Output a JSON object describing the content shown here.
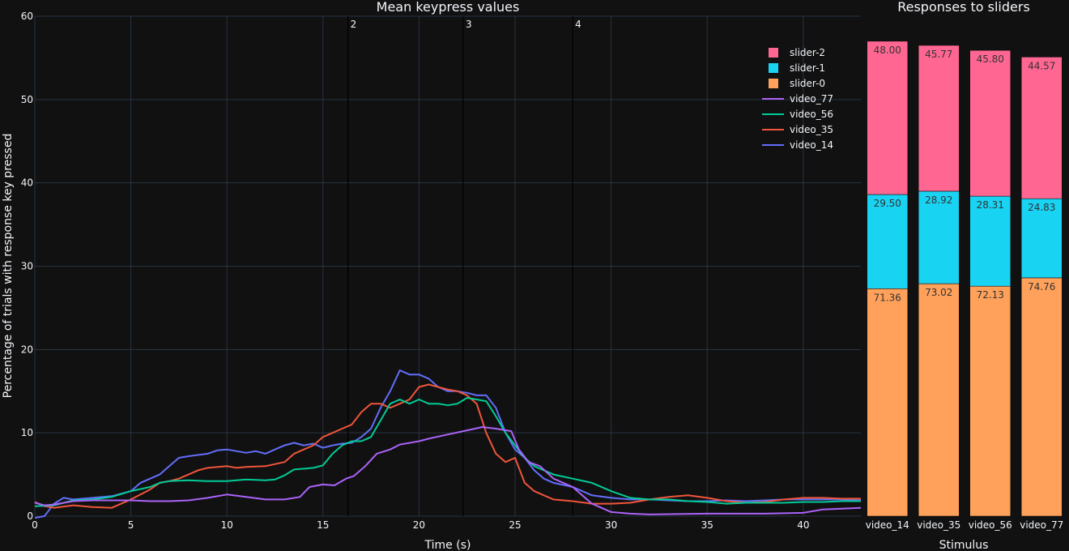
{
  "chart_data": [
    {
      "type": "line",
      "title": "Mean keypress values",
      "xlabel": "Time (s)",
      "ylabel": "Percentage of trials with response key pressed",
      "xlim": [
        0,
        43
      ],
      "ylim": [
        0,
        60
      ],
      "x_ticks": [
        0,
        5,
        10,
        15,
        20,
        25,
        30,
        35,
        40
      ],
      "y_ticks": [
        0,
        10,
        20,
        30,
        40,
        50,
        60
      ],
      "grid": true,
      "legend": "top-right",
      "event_markers": [
        {
          "label": "2",
          "x": 16.3
        },
        {
          "label": "3",
          "x": 22.3
        },
        {
          "label": "4",
          "x": 28.0
        }
      ],
      "series": [
        {
          "name": "video_77",
          "color": "#ab63fa",
          "points": [
            [
              0,
              1.6
            ],
            [
              0.5,
              1.3
            ],
            [
              1,
              1.4
            ],
            [
              2,
              1.8
            ],
            [
              3,
              1.9
            ],
            [
              4,
              1.9
            ],
            [
              5,
              1.9
            ],
            [
              6,
              1.8
            ],
            [
              7,
              1.8
            ],
            [
              8,
              1.9
            ],
            [
              9,
              2.2
            ],
            [
              10,
              2.6
            ],
            [
              11,
              2.3
            ],
            [
              12,
              2.0
            ],
            [
              13,
              2.0
            ],
            [
              13.8,
              2.3
            ],
            [
              14.3,
              3.5
            ],
            [
              15,
              3.8
            ],
            [
              15.6,
              3.7
            ],
            [
              16.2,
              4.5
            ],
            [
              16.6,
              4.8
            ],
            [
              17.2,
              6.0
            ],
            [
              17.8,
              7.5
            ],
            [
              18.5,
              8.0
            ],
            [
              19,
              8.6
            ],
            [
              20,
              9.0
            ],
            [
              20.5,
              9.3
            ],
            [
              21.5,
              9.8
            ],
            [
              22.5,
              10.3
            ],
            [
              23.3,
              10.7
            ],
            [
              24,
              10.5
            ],
            [
              24.8,
              10.2
            ],
            [
              25.2,
              8.0
            ],
            [
              25.7,
              6.5
            ],
            [
              26.3,
              6.0
            ],
            [
              27,
              4.5
            ],
            [
              28,
              3.5
            ],
            [
              29,
              1.5
            ],
            [
              30,
              0.5
            ],
            [
              31,
              0.3
            ],
            [
              32,
              0.2
            ],
            [
              35,
              0.3
            ],
            [
              38,
              0.3
            ],
            [
              40,
              0.4
            ],
            [
              41,
              0.8
            ],
            [
              42,
              0.9
            ],
            [
              43,
              1.0
            ]
          ]
        },
        {
          "name": "video_56",
          "color": "#00cc96",
          "points": [
            [
              0,
              1.2
            ],
            [
              1,
              1.3
            ],
            [
              2,
              1.9
            ],
            [
              3,
              2.0
            ],
            [
              4,
              2.3
            ],
            [
              5,
              3.0
            ],
            [
              6,
              3.5
            ],
            [
              6.5,
              4.0
            ],
            [
              7,
              4.2
            ],
            [
              8,
              4.3
            ],
            [
              9,
              4.2
            ],
            [
              10,
              4.2
            ],
            [
              11,
              4.4
            ],
            [
              12,
              4.3
            ],
            [
              12.5,
              4.4
            ],
            [
              13,
              4.9
            ],
            [
              13.5,
              5.6
            ],
            [
              14.5,
              5.8
            ],
            [
              15,
              6.1
            ],
            [
              15.5,
              7.5
            ],
            [
              16,
              8.5
            ],
            [
              16.5,
              9.0
            ],
            [
              17,
              9.0
            ],
            [
              17.5,
              9.5
            ],
            [
              18,
              11.5
            ],
            [
              18.5,
              13.5
            ],
            [
              19,
              14.0
            ],
            [
              19.5,
              13.5
            ],
            [
              20,
              14.0
            ],
            [
              20.5,
              13.5
            ],
            [
              21,
              13.5
            ],
            [
              21.5,
              13.3
            ],
            [
              22,
              13.5
            ],
            [
              22.5,
              14.2
            ],
            [
              23,
              14.0
            ],
            [
              23.5,
              13.8
            ],
            [
              24,
              12.0
            ],
            [
              24.5,
              10.0
            ],
            [
              25,
              8.5
            ],
            [
              25.5,
              7.0
            ],
            [
              26,
              6.0
            ],
            [
              26.5,
              5.5
            ],
            [
              27,
              5.0
            ],
            [
              28,
              4.5
            ],
            [
              29,
              4.0
            ],
            [
              30,
              3.0
            ],
            [
              31,
              2.2
            ],
            [
              32,
              2.0
            ],
            [
              33,
              2.0
            ],
            [
              34,
              1.8
            ],
            [
              35,
              1.7
            ],
            [
              36,
              1.5
            ],
            [
              37,
              1.6
            ],
            [
              38,
              1.6
            ],
            [
              39,
              1.6
            ],
            [
              40,
              1.7
            ],
            [
              41,
              1.7
            ],
            [
              42,
              1.8
            ],
            [
              43,
              1.8
            ]
          ]
        },
        {
          "name": "video_35",
          "color": "#ef553b",
          "points": [
            [
              0,
              1.7
            ],
            [
              0.5,
              1.2
            ],
            [
              1,
              1.0
            ],
            [
              2,
              1.3
            ],
            [
              3,
              1.1
            ],
            [
              4,
              1.0
            ],
            [
              5,
              2.0
            ],
            [
              6,
              3.2
            ],
            [
              6.5,
              4.0
            ],
            [
              7,
              4.2
            ],
            [
              7.5,
              4.5
            ],
            [
              8,
              5.0
            ],
            [
              8.5,
              5.5
            ],
            [
              9,
              5.8
            ],
            [
              10,
              6.0
            ],
            [
              10.5,
              5.8
            ],
            [
              11,
              5.9
            ],
            [
              12,
              6.0
            ],
            [
              13,
              6.5
            ],
            [
              13.5,
              7.5
            ],
            [
              14,
              8.0
            ],
            [
              14.5,
              8.5
            ],
            [
              15,
              9.5
            ],
            [
              15.5,
              10.0
            ],
            [
              16,
              10.5
            ],
            [
              16.5,
              11.0
            ],
            [
              17,
              12.5
            ],
            [
              17.5,
              13.5
            ],
            [
              18,
              13.5
            ],
            [
              18.5,
              13.0
            ],
            [
              19,
              13.5
            ],
            [
              19.5,
              14.0
            ],
            [
              20,
              15.5
            ],
            [
              20.5,
              15.8
            ],
            [
              21,
              15.5
            ],
            [
              21.5,
              15.2
            ],
            [
              22,
              15.0
            ],
            [
              22.5,
              14.5
            ],
            [
              23,
              13.5
            ],
            [
              23.5,
              10.0
            ],
            [
              24,
              7.5
            ],
            [
              24.5,
              6.5
            ],
            [
              25,
              7.0
            ],
            [
              25.5,
              4.0
            ],
            [
              26,
              3.0
            ],
            [
              26.5,
              2.5
            ],
            [
              27,
              2.0
            ],
            [
              28,
              1.8
            ],
            [
              29,
              1.5
            ],
            [
              30,
              1.5
            ],
            [
              31,
              1.6
            ],
            [
              32,
              2.0
            ],
            [
              33,
              2.3
            ],
            [
              34,
              2.5
            ],
            [
              35,
              2.2
            ],
            [
              36,
              1.8
            ],
            [
              37,
              1.6
            ],
            [
              38,
              1.7
            ],
            [
              39,
              2.0
            ],
            [
              40,
              2.2
            ],
            [
              41,
              2.2
            ],
            [
              42,
              2.1
            ],
            [
              43,
              2.1
            ]
          ]
        },
        {
          "name": "video_14",
          "color": "#636efa",
          "points": [
            [
              0,
              -0.2
            ],
            [
              0.5,
              0
            ],
            [
              1,
              1.5
            ],
            [
              1.5,
              2.2
            ],
            [
              2,
              2.0
            ],
            [
              3,
              2.2
            ],
            [
              4,
              2.4
            ],
            [
              5,
              3.0
            ],
            [
              5.5,
              4.0
            ],
            [
              6,
              4.5
            ],
            [
              6.5,
              5.0
            ],
            [
              7,
              6.0
            ],
            [
              7.5,
              7.0
            ],
            [
              8,
              7.2
            ],
            [
              9,
              7.5
            ],
            [
              9.5,
              7.9
            ],
            [
              10,
              8.0
            ],
            [
              10.5,
              7.8
            ],
            [
              11,
              7.6
            ],
            [
              11.5,
              7.8
            ],
            [
              12,
              7.5
            ],
            [
              12.5,
              8.0
            ],
            [
              13,
              8.5
            ],
            [
              13.5,
              8.8
            ],
            [
              14,
              8.5
            ],
            [
              14.5,
              8.7
            ],
            [
              15,
              8.2
            ],
            [
              15.5,
              8.5
            ],
            [
              16,
              8.7
            ],
            [
              16.5,
              8.8
            ],
            [
              17,
              9.5
            ],
            [
              17.5,
              10.5
            ],
            [
              18,
              13.0
            ],
            [
              18.5,
              15.0
            ],
            [
              19,
              17.5
            ],
            [
              19.5,
              17.0
            ],
            [
              20,
              17.0
            ],
            [
              20.5,
              16.5
            ],
            [
              21,
              15.5
            ],
            [
              21.5,
              15.0
            ],
            [
              22,
              15.0
            ],
            [
              22.5,
              14.8
            ],
            [
              23,
              14.5
            ],
            [
              23.5,
              14.5
            ],
            [
              24,
              13.0
            ],
            [
              24.5,
              10.0
            ],
            [
              25,
              8.0
            ],
            [
              25.5,
              7.0
            ],
            [
              26,
              5.5
            ],
            [
              26.5,
              4.5
            ],
            [
              27,
              4.0
            ],
            [
              28,
              3.5
            ],
            [
              28.5,
              3.0
            ],
            [
              29,
              2.5
            ],
            [
              30,
              2.2
            ],
            [
              31,
              2.0
            ],
            [
              32,
              2.0
            ],
            [
              33,
              1.9
            ],
            [
              34,
              1.8
            ],
            [
              35,
              1.8
            ],
            [
              36,
              1.9
            ],
            [
              37,
              1.8
            ],
            [
              38,
              1.9
            ],
            [
              39,
              2.0
            ],
            [
              40,
              2.0
            ],
            [
              41,
              2.0
            ],
            [
              42,
              2.0
            ],
            [
              43,
              1.9
            ]
          ]
        }
      ]
    },
    {
      "type": "bar",
      "stacked": true,
      "title": "Responses to sliders",
      "xlabel": "Stimulus",
      "categories": [
        "video_14",
        "video_35",
        "video_56",
        "video_77"
      ],
      "ylim": [
        0,
        60
      ],
      "legend": "top-right",
      "segments": [
        {
          "name": "slider-0",
          "color": "#ffa15a",
          "labels": [
            "71.36",
            "73.02",
            "72.13",
            "74.76"
          ],
          "heights": [
            27.3,
            27.9,
            27.6,
            28.6
          ]
        },
        {
          "name": "slider-1",
          "color": "#19d3f3",
          "labels": [
            "29.50",
            "28.92",
            "28.31",
            "24.83"
          ],
          "heights": [
            11.3,
            11.1,
            10.8,
            9.5
          ]
        },
        {
          "name": "slider-2",
          "color": "#ff6692",
          "labels": [
            "48.00",
            "45.77",
            "45.80",
            "44.57"
          ],
          "heights": [
            18.4,
            17.5,
            17.5,
            17.0
          ]
        }
      ]
    }
  ],
  "legend": {
    "items": [
      {
        "name": "slider-2",
        "kind": "box",
        "color": "#ff6692"
      },
      {
        "name": "slider-1",
        "kind": "box",
        "color": "#19d3f3"
      },
      {
        "name": "slider-0",
        "kind": "box",
        "color": "#ffa15a"
      },
      {
        "name": "video_77",
        "kind": "line",
        "color": "#ab63fa"
      },
      {
        "name": "video_56",
        "kind": "line",
        "color": "#00cc96"
      },
      {
        "name": "video_35",
        "kind": "line",
        "color": "#ef553b"
      },
      {
        "name": "video_14",
        "kind": "line",
        "color": "#636efa"
      }
    ]
  }
}
